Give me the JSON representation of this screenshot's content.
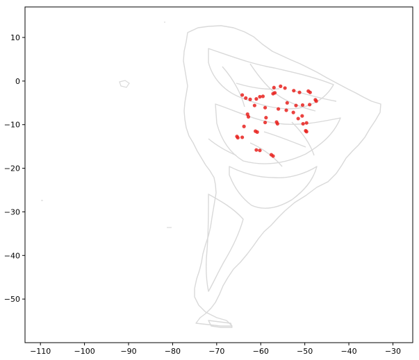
{
  "chart_data": {
    "type": "scatter",
    "title": "",
    "xlabel": "",
    "ylabel": "",
    "xlim": [
      -113.5,
      -25.5
    ],
    "ylim": [
      -60,
      17
    ],
    "xticks": [
      -110,
      -100,
      -90,
      -80,
      -70,
      -60,
      -50,
      -40,
      -30
    ],
    "yticks": [
      10,
      0,
      -10,
      -20,
      -30,
      -40,
      -50
    ],
    "grid": false,
    "basemap": "South America outline (light grey)",
    "colors": {
      "basemap": "#d9d9d9",
      "points": "#e8211d",
      "frame": "#000000"
    },
    "series": [
      {
        "values": [
          [
            -57.0,
            -1.5
          ],
          [
            -55.5,
            -1.2
          ],
          [
            -54.5,
            -1.6
          ],
          [
            -52.5,
            -2.2
          ],
          [
            -51.2,
            -2.6
          ],
          [
            -49.2,
            -2.3
          ],
          [
            -48.8,
            -2.6
          ],
          [
            -47.6,
            -4.3
          ],
          [
            -47.4,
            -4.6
          ],
          [
            -48.9,
            -5.4
          ],
          [
            -50.5,
            -5.5
          ],
          [
            -52.0,
            -5.6
          ],
          [
            -54.0,
            -5.0
          ],
          [
            -57.2,
            -2.9
          ],
          [
            -56.8,
            -2.7
          ],
          [
            -59.5,
            -3.5
          ],
          [
            -60.2,
            -3.6
          ],
          [
            -61.0,
            -4.1
          ],
          [
            -62.4,
            -4.2
          ],
          [
            -63.4,
            -3.9
          ],
          [
            -64.2,
            -3.2
          ],
          [
            -61.4,
            -5.6
          ],
          [
            -59.0,
            -6.1
          ],
          [
            -63.0,
            -7.6
          ],
          [
            -62.8,
            -8.2
          ],
          [
            -56.4,
            -9.4
          ],
          [
            -56.2,
            -9.8
          ],
          [
            -50.4,
            -9.8
          ],
          [
            -49.6,
            -9.6
          ],
          [
            -49.8,
            -11.4
          ],
          [
            -49.6,
            -11.6
          ],
          [
            -61.2,
            -11.5
          ],
          [
            -60.8,
            -11.7
          ],
          [
            -63.8,
            -10.4
          ],
          [
            -64.2,
            -12.9
          ],
          [
            -65.4,
            -12.7
          ],
          [
            -65.2,
            -13.0
          ],
          [
            -61.0,
            -15.8
          ],
          [
            -60.2,
            -15.9
          ],
          [
            -57.6,
            -16.9
          ],
          [
            -57.2,
            -17.2
          ],
          [
            -52.6,
            -7.2
          ],
          [
            -51.5,
            -8.6
          ],
          [
            -50.6,
            -8.0
          ],
          [
            -58.8,
            -8.4
          ],
          [
            -59.0,
            -9.5
          ],
          [
            -54.2,
            -6.7
          ],
          [
            -56.0,
            -6.4
          ]
        ]
      }
    ]
  }
}
